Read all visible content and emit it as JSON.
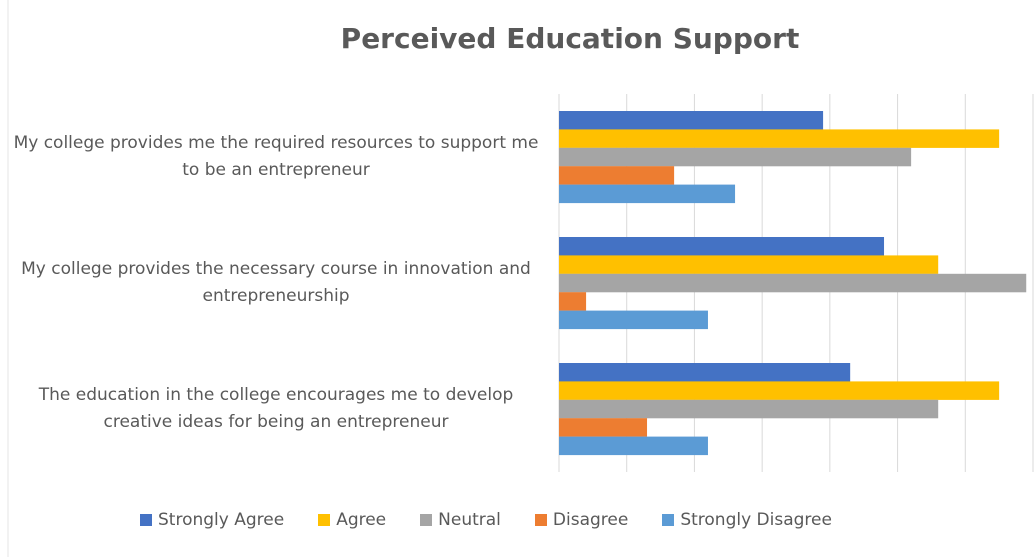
{
  "chart_data": {
    "type": "barh",
    "title": "Perceived Education Support",
    "categories": [
      "My college provides me the required resources to support me to be an entrepreneur",
      "My college provides the necessary course in innovation and entrepreneurship",
      "The education in the college encourages me to develop creative ideas for being an entrepreneur"
    ],
    "series": [
      {
        "name": "Strongly Agree",
        "color": "#4472c4",
        "values": [
          39,
          48,
          43
        ]
      },
      {
        "name": "Agree",
        "color": "#ffc000",
        "values": [
          65,
          56,
          65
        ]
      },
      {
        "name": "Neutral",
        "color": "#a5a5a5",
        "values": [
          52,
          69,
          56
        ]
      },
      {
        "name": "Disagree",
        "color": "#ed7d31",
        "values": [
          17,
          4,
          13
        ]
      },
      {
        "name": "Strongly Disagree",
        "color": "#5b9bd5",
        "values": [
          26,
          22,
          22
        ]
      }
    ],
    "xlim": [
      0,
      70
    ],
    "xticks": [
      0,
      10,
      20,
      30,
      40,
      50,
      60,
      70
    ],
    "grid": true,
    "show_tick_labels": false,
    "legend": "bottom"
  }
}
